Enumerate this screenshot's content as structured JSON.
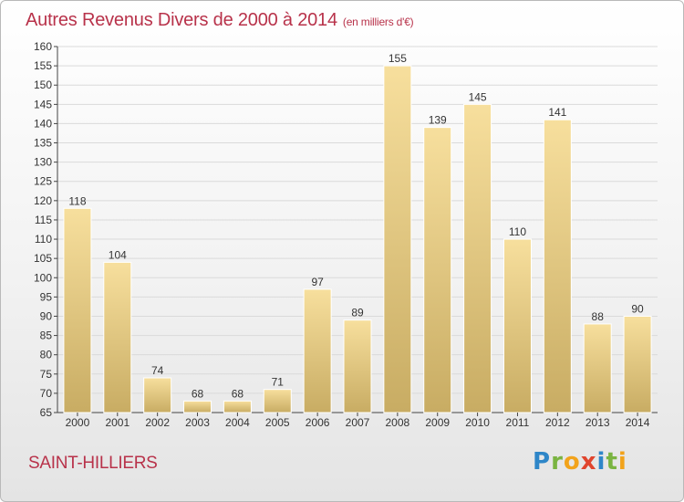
{
  "header": {
    "title": "Autres Revenus Divers de 2000 à 2014",
    "subtitle": "(en milliers d'€)"
  },
  "footer": {
    "place": "SAINT-HILLIERS",
    "logo_letters": [
      "P",
      "r",
      "o",
      "x",
      "i",
      "t",
      "i"
    ],
    "logo_colors": [
      "#2e86c8",
      "#7ab441",
      "#f2a31b",
      "#e0452e",
      "#2e86c8",
      "#7ab441",
      "#f2a31b"
    ]
  },
  "chart_data": {
    "type": "bar",
    "categories": [
      "2000",
      "2001",
      "2002",
      "2003",
      "2004",
      "2005",
      "2006",
      "2007",
      "2008",
      "2009",
      "2010",
      "2011",
      "2012",
      "2013",
      "2014"
    ],
    "values": [
      118,
      104,
      74,
      68,
      68,
      71,
      97,
      89,
      155,
      139,
      145,
      110,
      141,
      88,
      90
    ],
    "data_labels": [
      "118",
      "104",
      "74",
      "68",
      "68",
      "71",
      "97",
      "89",
      "155",
      "139",
      "145",
      "110",
      "141",
      "88",
      "90"
    ],
    "ylim": [
      65,
      160
    ],
    "yticks": [
      65,
      70,
      75,
      80,
      85,
      90,
      95,
      100,
      105,
      110,
      115,
      120,
      125,
      130,
      135,
      140,
      145,
      150,
      155,
      160
    ],
    "grid": true,
    "bar_color_light": "#f7df9d",
    "bar_color_dark": "#c8ac63"
  }
}
